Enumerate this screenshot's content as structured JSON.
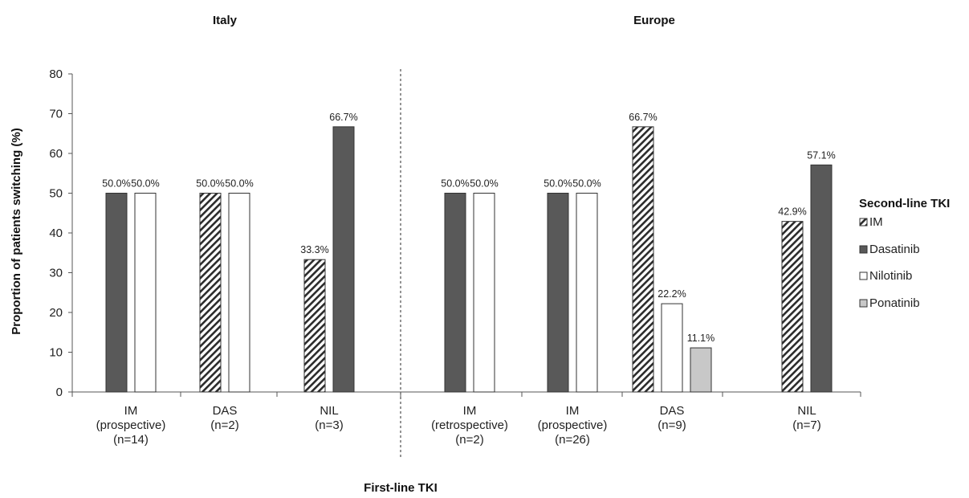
{
  "chart_data": {
    "type": "bar",
    "groups": [
      {
        "title": "Italy",
        "categories": [
          [
            "IM",
            "(prospective)",
            "(n=14)"
          ],
          [
            "DAS",
            "(n=2)"
          ],
          [
            "NIL",
            "(n=3)"
          ]
        ]
      },
      {
        "title": "Europe",
        "categories": [
          [
            "IM",
            "(retrospective)",
            "(n=2)"
          ],
          [
            "IM",
            "(prospective)",
            "(n=26)"
          ],
          [
            "DAS",
            "(n=9)"
          ],
          [
            "NIL",
            "(n=7)"
          ]
        ]
      }
    ],
    "series": [
      {
        "name": "IM",
        "pattern": "hatch",
        "color": "#2b2b2b",
        "values": [
          null,
          50.0,
          33.3,
          null,
          null,
          66.7,
          42.9
        ],
        "labels": [
          "",
          "50.0%",
          "33.3%",
          "",
          "",
          "66.7%",
          "42.9%"
        ]
      },
      {
        "name": "Dasatinib",
        "pattern": "solid",
        "color": "#595959",
        "values": [
          50.0,
          null,
          66.7,
          50.0,
          50.0,
          null,
          57.1
        ],
        "labels": [
          "50.0%",
          "",
          "66.7%",
          "50.0%",
          "50.0%",
          "",
          "57.1%"
        ]
      },
      {
        "name": "Nilotinib",
        "pattern": "solid",
        "color": "#ffffff",
        "values": [
          50.0,
          50.0,
          null,
          50.0,
          50.0,
          22.2,
          null
        ],
        "labels": [
          "50.0%",
          "50.0%",
          "",
          "50.0%",
          "50.0%",
          "22.2%",
          ""
        ]
      },
      {
        "name": "Ponatinib",
        "pattern": "solid",
        "color": "#c8c8c8",
        "values": [
          null,
          null,
          null,
          null,
          null,
          11.1,
          null
        ],
        "labels": [
          "",
          "",
          "",
          "",
          "",
          "11.1%",
          ""
        ]
      }
    ],
    "ylabel": "Proportion of patients switching (%)",
    "xlabel": "First-line TKI",
    "ylim": [
      0,
      80
    ],
    "yticks": [
      0,
      10,
      20,
      30,
      40,
      50,
      60,
      70,
      80
    ],
    "legend_title": "Second-line TKI",
    "legend_placement": "right",
    "grid": false
  }
}
